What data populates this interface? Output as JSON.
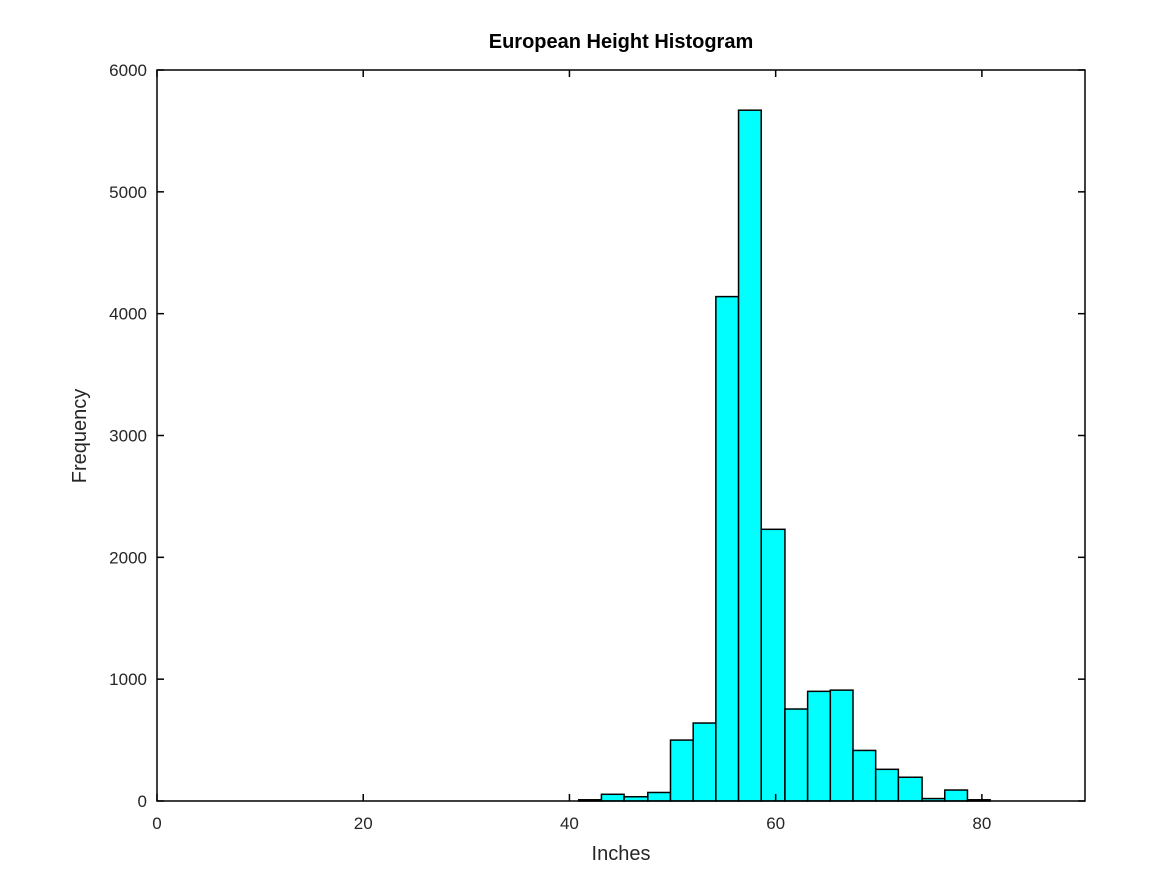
{
  "chart_data": {
    "type": "bar",
    "title": "European Height Histogram",
    "xlabel": "Inches",
    "ylabel": "Frequency",
    "xlim": [
      0,
      90
    ],
    "ylim": [
      0,
      6000
    ],
    "xticks": [
      "0",
      "20",
      "40",
      "60",
      "80"
    ],
    "yticks": [
      "0",
      "1000",
      "2000",
      "3000",
      "4000",
      "5000",
      "6000"
    ],
    "bin_width": 2.22,
    "bins": [
      {
        "x0": 40.9,
        "x1": 43.1,
        "value": 10
      },
      {
        "x0": 43.1,
        "x1": 45.3,
        "value": 55
      },
      {
        "x0": 45.3,
        "x1": 47.6,
        "value": 35
      },
      {
        "x0": 47.6,
        "x1": 49.8,
        "value": 70
      },
      {
        "x0": 49.8,
        "x1": 52.0,
        "value": 500
      },
      {
        "x0": 52.0,
        "x1": 54.2,
        "value": 640
      },
      {
        "x0": 54.2,
        "x1": 56.4,
        "value": 4140
      },
      {
        "x0": 56.4,
        "x1": 58.6,
        "value": 5670
      },
      {
        "x0": 58.6,
        "x1": 60.9,
        "value": 2230
      },
      {
        "x0": 60.9,
        "x1": 63.1,
        "value": 755
      },
      {
        "x0": 63.1,
        "x1": 65.3,
        "value": 900
      },
      {
        "x0": 65.3,
        "x1": 67.5,
        "value": 910
      },
      {
        "x0": 67.5,
        "x1": 69.7,
        "value": 415
      },
      {
        "x0": 69.7,
        "x1": 71.9,
        "value": 260
      },
      {
        "x0": 71.9,
        "x1": 74.2,
        "value": 195
      },
      {
        "x0": 74.2,
        "x1": 76.4,
        "value": 20
      },
      {
        "x0": 76.4,
        "x1": 78.6,
        "value": 90
      },
      {
        "x0": 78.6,
        "x1": 80.8,
        "value": 10
      }
    ],
    "grid": false,
    "legend": "none",
    "bar_color": "#00ffff",
    "edge_color": "#000000"
  }
}
